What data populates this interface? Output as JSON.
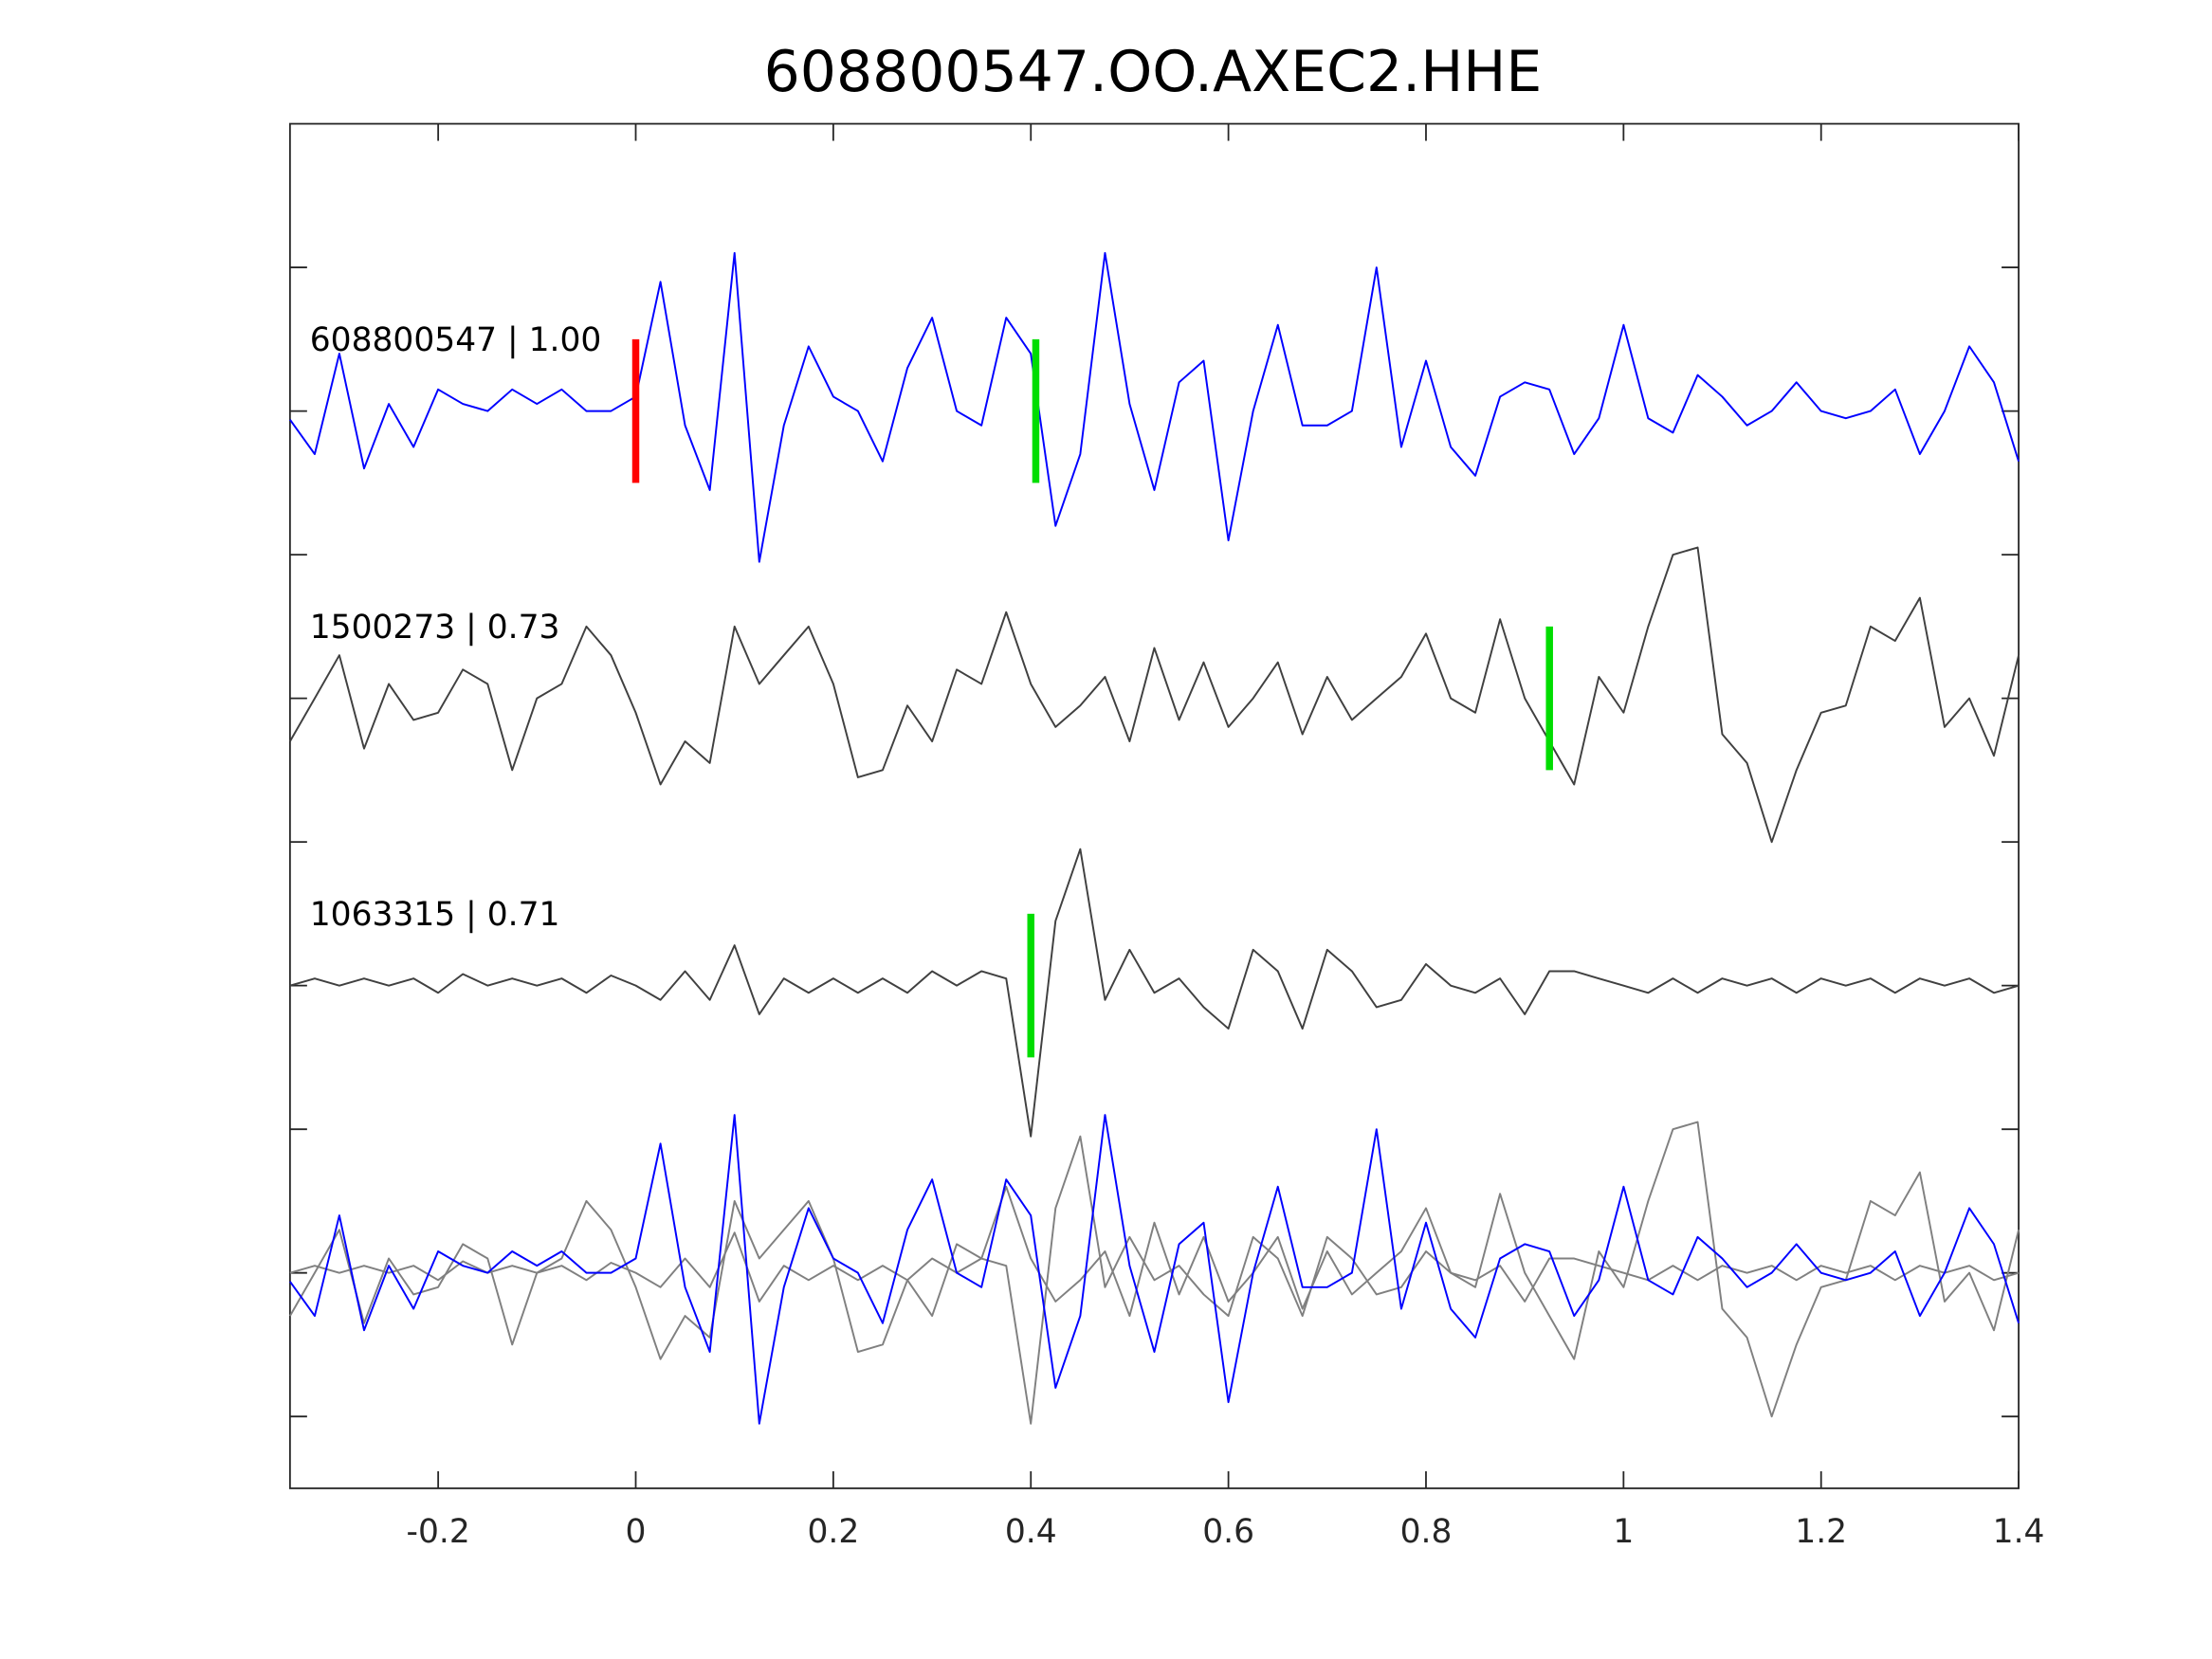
{
  "chart_data": {
    "type": "line",
    "title": "608800547.OO.AXEC2.HHE",
    "xlabel": "",
    "ylabel": "",
    "xlim": [
      -0.35,
      1.4
    ],
    "ylim": [
      -0.5,
      9
    ],
    "xticks": [
      -0.2,
      0,
      0.2,
      0.4,
      0.6,
      0.8,
      1,
      1.2,
      1.4
    ],
    "xtick_labels": [
      "-0.2",
      "0",
      "0.2",
      "0.4",
      "0.6",
      "0.8",
      "1",
      "1.2",
      "1.4"
    ],
    "yticks": [
      0,
      1,
      2,
      3,
      4,
      5,
      6,
      7,
      8
    ],
    "grid": false,
    "x": [
      -0.35,
      -0.325,
      -0.3,
      -0.275,
      -0.25,
      -0.225,
      -0.2,
      -0.175,
      -0.15,
      -0.125,
      -0.1,
      -0.075,
      -0.05,
      -0.025,
      0,
      0.025,
      0.05,
      0.075,
      0.1,
      0.125,
      0.15,
      0.175,
      0.2,
      0.225,
      0.25,
      0.275,
      0.3,
      0.325,
      0.35,
      0.375,
      0.4,
      0.425,
      0.45,
      0.475,
      0.5,
      0.525,
      0.55,
      0.575,
      0.6,
      0.625,
      0.65,
      0.675,
      0.7,
      0.725,
      0.75,
      0.775,
      0.8,
      0.825,
      0.85,
      0.875,
      0.9,
      0.925,
      0.95,
      0.975,
      1.0,
      1.025,
      1.05,
      1.075,
      1.1,
      1.125,
      1.15,
      1.175,
      1.2,
      1.225,
      1.25,
      1.275,
      1.3,
      1.325,
      1.35,
      1.375,
      1.4
    ],
    "series": [
      {
        "name": "608800547",
        "label": "608800547 | 1.00",
        "color": "#0000ff",
        "offset": 7,
        "values": [
          -0.06,
          -0.3,
          0.4,
          -0.4,
          0.05,
          -0.25,
          0.15,
          0.05,
          0,
          0.15,
          0.05,
          0.15,
          0,
          0,
          0.1,
          0.9,
          -0.1,
          -0.55,
          1.1,
          -1.05,
          -0.1,
          0.45,
          0.1,
          0,
          -0.35,
          0.3,
          0.65,
          0,
          -0.1,
          0.65,
          0.4,
          -0.8,
          -0.3,
          1.1,
          0.05,
          -0.55,
          0.2,
          0.35,
          -0.9,
          0,
          0.6,
          -0.1,
          -0.1,
          0,
          1.0,
          -0.25,
          0.35,
          -0.25,
          -0.45,
          0.1,
          0.2,
          0.15,
          -0.3,
          -0.05,
          0.6,
          -0.05,
          -0.15,
          0.25,
          0.1,
          -0.1,
          0,
          0.2,
          0,
          -0.05,
          0,
          0.15,
          -0.3,
          0,
          0.45,
          0.2,
          -0.35
        ]
      },
      {
        "name": "1500273",
        "label": "1500273 | 0.73",
        "color": "#404040",
        "offset": 5,
        "values": [
          -0.3,
          0,
          0.3,
          -0.35,
          0.1,
          -0.15,
          -0.1,
          0.2,
          0.1,
          -0.5,
          0,
          0.1,
          0.5,
          0.3,
          -0.1,
          -0.6,
          -0.3,
          -0.45,
          0.5,
          0.1,
          0.3,
          0.5,
          0.1,
          -0.55,
          -0.5,
          -0.05,
          -0.3,
          0.2,
          0.1,
          0.6,
          0.1,
          -0.2,
          -0.05,
          0.15,
          -0.3,
          0.35,
          -0.15,
          0.25,
          -0.2,
          0,
          0.25,
          -0.25,
          0.15,
          -0.15,
          0,
          0.15,
          0.45,
          0,
          -0.1,
          0.55,
          0,
          -0.3,
          -0.6,
          0.15,
          -0.1,
          0.5,
          1.0,
          1.05,
          -0.25,
          -0.45,
          -1.0,
          -0.5,
          -0.1,
          -0.05,
          0.5,
          0.4,
          0.7,
          -0.2,
          0,
          -0.4,
          0.3
        ]
      },
      {
        "name": "1063315",
        "label": "1063315 | 0.71",
        "color": "#404040",
        "offset": 3,
        "values": [
          0,
          0.05,
          0,
          0.05,
          0,
          0.05,
          -0.05,
          0.08,
          0,
          0.05,
          0,
          0.05,
          -0.05,
          0.07,
          0,
          -0.1,
          0.1,
          -0.1,
          0.28,
          -0.2,
          0.05,
          -0.05,
          0.05,
          -0.05,
          0.05,
          -0.05,
          0.1,
          0,
          0.1,
          0.05,
          -1.05,
          0.45,
          0.95,
          -0.1,
          0.25,
          -0.05,
          0.05,
          -0.15,
          -0.3,
          0.25,
          0.1,
          -0.3,
          0.25,
          0.1,
          -0.15,
          -0.1,
          0.15,
          0,
          -0.05,
          0.05,
          -0.2,
          0.1,
          0.1,
          0.05,
          0,
          -0.05,
          0.05,
          -0.05,
          0.05,
          0,
          0.05,
          -0.05,
          0.05,
          0,
          0.05,
          -0.05,
          0.05,
          0,
          0.05,
          -0.05,
          0
        ]
      }
    ],
    "overlay": {
      "offset": 1,
      "colors": [
        "#0000ff",
        "#808080",
        "#808080"
      ]
    },
    "picks": [
      {
        "trace": 0,
        "x": 0,
        "color": "#ff0000"
      },
      {
        "trace": 0,
        "x": 0.405,
        "color": "#00dd00"
      },
      {
        "trace": 1,
        "x": 0.925,
        "color": "#00dd00"
      },
      {
        "trace": 2,
        "x": 0.4,
        "color": "#00dd00"
      }
    ]
  }
}
